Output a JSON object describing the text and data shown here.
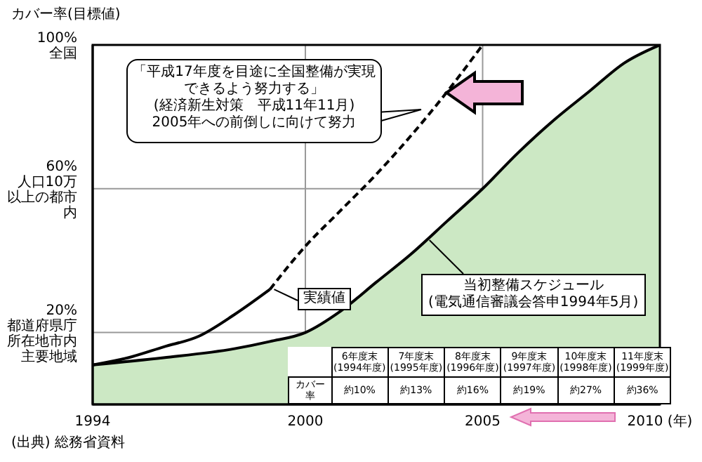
{
  "chart_data": {
    "type": "line",
    "ylabel": "カバー率(目標値)",
    "xlim": [
      1994,
      2010
    ],
    "ylim": [
      0,
      100
    ],
    "xticks": [
      1994,
      2000,
      2005,
      {
        "value": 2010,
        "label": "2010 (年)"
      }
    ],
    "yticks": [
      {
        "value": 20,
        "label": "20%\n都道府県庁所在地市内主要地域"
      },
      {
        "value": 60,
        "label": "60%\n人口10万以上の都市内"
      },
      {
        "value": 100,
        "label": "100%\n全国"
      }
    ],
    "grid": true,
    "marker": "none",
    "series": [
      {
        "type": "area",
        "name": "当初整備スケジュール\n(電気通信審議会答申1994年5月)",
        "color": "#cce8c4",
        "x": [
          1994,
          1996,
          1998,
          1999,
          2000,
          2001,
          2002,
          2003,
          2004,
          2005,
          2006,
          2007,
          2008,
          2009,
          2010
        ],
        "values": [
          11,
          13,
          15.5,
          17.5,
          20,
          26,
          34,
          42,
          51,
          60,
          70,
          79,
          87,
          95,
          100
        ]
      },
      {
        "name": "実績値",
        "color": "#000000",
        "line_style": "solid",
        "x": [
          1994,
          1995,
          1996,
          1997,
          1998,
          1999
        ],
        "values": [
          11,
          13,
          16,
          19,
          25,
          32
        ]
      },
      {
        "color": "#000000",
        "line_style": "dashed",
        "x": [
          1999,
          2000,
          2001,
          2002,
          2003,
          2004,
          2005
        ],
        "values": [
          32,
          44,
          54,
          64,
          75,
          87,
          100
        ]
      }
    ],
    "annotations": [
      "「平成17年度を目途に全国整備が実現できるよう努力する」\n(経済新生対策　平成11年11月)\n2005年への前倒しに向けて努力",
      "(出典) 総務省資料",
      "カバー率",
      "6年度末\n(1994年度)",
      "7年度末\n(1995年度)",
      "8年度末\n(1996年度)",
      "9年度末\n(1997年度)",
      "10年度末\n(1998年度)",
      "11年度末\n(1999年度)",
      "約10%",
      "約13%",
      "約16%",
      "約19%",
      "約27%",
      "約36%"
    ]
  }
}
